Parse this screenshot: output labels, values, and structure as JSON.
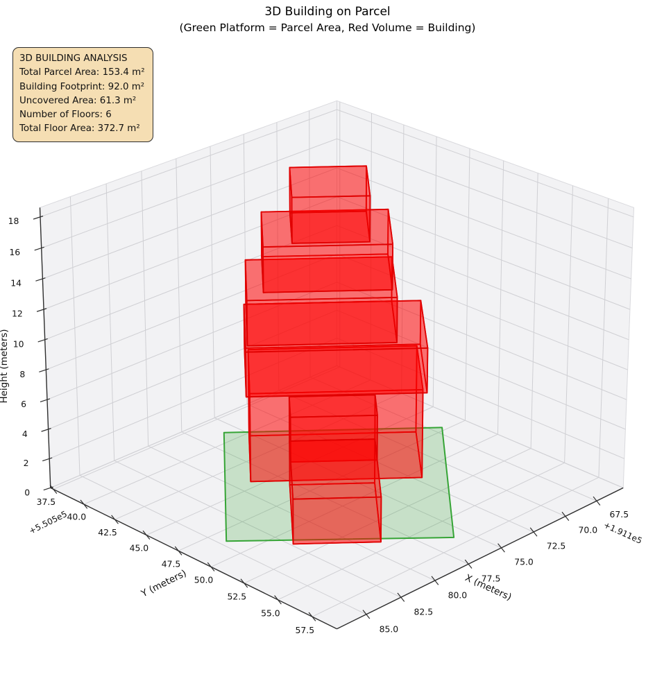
{
  "title": "3D Building on Parcel",
  "subtitle": "(Green Platform = Parcel Area, Red Volume = Building)",
  "info_box": {
    "heading": "3D BUILDING ANALYSIS",
    "lines": [
      "Total Parcel Area: 153.4 m²",
      "Building Footprint: 92.0 m²",
      "Uncovered Area: 61.3 m²",
      "Number of Floors: 6",
      "Total Floor Area: 372.7 m²"
    ]
  },
  "chart_data": {
    "type": "3d-building",
    "title": "3D Building on Parcel",
    "subtitle": "(Green Platform = Parcel Area, Red Volume = Building)",
    "view": {
      "elev": 25,
      "azim": 45
    },
    "x_axis": {
      "label": "X (meters)",
      "offset_text": "+1.911e5",
      "ticks": [
        67.5,
        70.0,
        72.5,
        75.0,
        77.5,
        80.0,
        82.5,
        85.0
      ],
      "lim": [
        65.34,
        87.09
      ],
      "decimals": 1
    },
    "y_axis": {
      "label": "Y (meters)",
      "offset_text": "+5.505e5",
      "ticks": [
        37.5,
        40.0,
        42.5,
        45.0,
        47.5,
        50.0,
        52.5,
        55.0,
        57.5
      ],
      "lim": [
        37.26,
        59.27
      ],
      "decimals": 1
    },
    "z_axis": {
      "label": "Height (meters)",
      "ticks": [
        0,
        2,
        4,
        6,
        8,
        10,
        12,
        14,
        16,
        18
      ],
      "lim": [
        0,
        18.6
      ],
      "decimals": 0
    },
    "parcel": {
      "name": "parcel-platform",
      "polygon": [
        [
          75.9,
          39.0
        ],
        [
          84.6,
          48.5
        ],
        [
          75.9,
          56.7
        ],
        [
          66.9,
          47.2
        ]
      ],
      "z": 0,
      "fill": "rgba(44,160,44,0.22)",
      "edge": "#2ca02c"
    },
    "building": {
      "fill": "rgba(255,0,0,0.32)",
      "edge": "#e00000",
      "num_floors": 6,
      "floor_height_m": 3,
      "boxes": [
        {
          "name": "tower-floors-1-2",
          "z0": 0,
          "z1": 6,
          "fp": [
            [
              78.98,
              44.42
            ],
            [
              72.1,
              50.68
            ],
            [
              68.32,
              46.55
            ],
            [
              75.2,
              40.29
            ]
          ]
        },
        {
          "name": "tower-floor-3",
          "z0": 6,
          "z1": 9,
          "fp": [
            [
              79.39,
              44.58
            ],
            [
              72.22,
              51.11
            ],
            [
              68.04,
              46.54
            ],
            [
              75.21,
              40.01
            ]
          ]
        },
        {
          "name": "tower-floor-4",
          "z0": 9,
          "z1": 12,
          "fp": [
            [
              78.78,
              44.06
            ],
            [
              72.87,
              49.45
            ],
            [
              69.22,
              45.46
            ],
            [
              75.13,
              40.08
            ]
          ]
        },
        {
          "name": "tower-floor-5",
          "z0": 12,
          "z1": 15,
          "fp": [
            [
              77.44,
              43.93
            ],
            [
              72.34,
              48.57
            ],
            [
              69.1,
              45.03
            ],
            [
              74.2,
              40.39
            ]
          ]
        },
        {
          "name": "tower-floor-6",
          "z0": 15,
          "z1": 18,
          "fp": [
            [
              76.02,
              44.68
            ],
            [
              72.96,
              47.47
            ],
            [
              70.13,
              44.37
            ],
            [
              73.19,
              41.58
            ]
          ]
        },
        {
          "name": "wing-floor-2",
          "z0": 3,
          "z1": 6,
          "fp": [
            [
              79.45,
              48.05
            ],
            [
              76.05,
              51.15
            ],
            [
              74.36,
              49.3
            ],
            [
              77.76,
              46.2
            ]
          ]
        },
        {
          "name": "wing-floor-1",
          "z0": 0,
          "z1": 3,
          "fp": [
            [
              82.35,
              51.22
            ],
            [
              78.95,
              54.32
            ],
            [
              74.36,
              49.3
            ],
            [
              77.76,
              46.2
            ]
          ]
        }
      ]
    },
    "style": {
      "pane_fill": "#f2f2f4",
      "pane_edge": "#d9d9dd",
      "grid_color": "#cfcfd3",
      "spine_color": "#2e2e2e",
      "text_color": "#111111",
      "background": "#ffffff"
    }
  }
}
